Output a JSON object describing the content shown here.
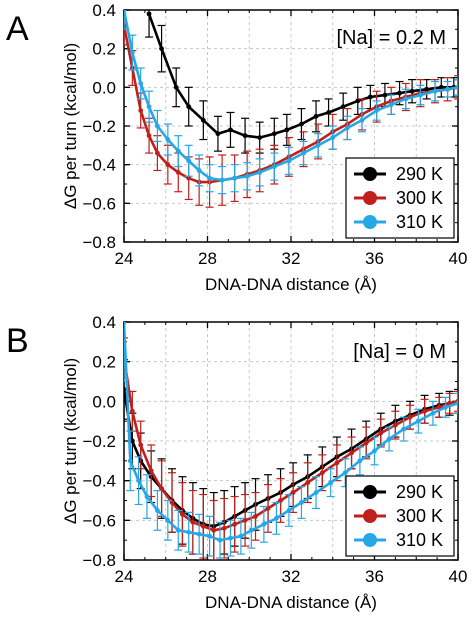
{
  "chart_data": [
    {
      "type": "line",
      "panel_label": "A",
      "annotation": "[Na] = 0.2 M",
      "xlabel": "DNA-DNA distance (Å)",
      "ylabel": "ΔG per turn (kcal/mol)",
      "xlim": [
        24,
        40
      ],
      "ylim": [
        -0.8,
        0.4
      ],
      "xticks": [
        "24",
        "28",
        "32",
        "36",
        "40"
      ],
      "yticks": [
        "0.4",
        "0.2",
        "0.0",
        "−0.2",
        "−0.4",
        "−0.6",
        "−0.8"
      ],
      "grid": true,
      "legend_position": "right",
      "series": [
        {
          "name": "290 K",
          "color": "#000000",
          "x": [
            25.2,
            25.8,
            26.5,
            27.1,
            27.8,
            28.5,
            29.1,
            29.8,
            30.5,
            31.2,
            31.8,
            32.5,
            33.2,
            33.8,
            34.5,
            35.2,
            35.8,
            36.5,
            37.2,
            37.8,
            38.5,
            39.2,
            39.8,
            40.0
          ],
          "y": [
            0.38,
            0.2,
            0.0,
            -0.1,
            -0.17,
            -0.24,
            -0.22,
            -0.25,
            -0.26,
            -0.24,
            -0.22,
            -0.19,
            -0.15,
            -0.13,
            -0.1,
            -0.07,
            -0.05,
            -0.04,
            -0.03,
            -0.02,
            -0.01,
            0.0,
            0.0,
            0.0
          ],
          "err": [
            0.12,
            0.12,
            0.1,
            0.1,
            0.1,
            0.09,
            0.09,
            0.09,
            0.08,
            0.08,
            0.08,
            0.08,
            0.08,
            0.07,
            0.07,
            0.07,
            0.06,
            0.06,
            0.06,
            0.06,
            0.05,
            0.05,
            0.05,
            0.04
          ]
        },
        {
          "name": "300 K",
          "color": "#c0201c",
          "x": [
            24.0,
            24.4,
            24.8,
            25.2,
            25.6,
            26.1,
            26.6,
            27.1,
            27.6,
            28.1,
            28.7,
            29.3,
            29.9,
            30.5,
            31.2,
            31.9,
            32.6,
            33.3,
            34.0,
            34.7,
            35.4,
            36.1,
            36.8,
            37.5,
            38.2,
            38.9,
            39.5,
            40.0
          ],
          "y": [
            0.32,
            0.1,
            -0.12,
            -0.25,
            -0.34,
            -0.4,
            -0.44,
            -0.47,
            -0.49,
            -0.49,
            -0.48,
            -0.47,
            -0.45,
            -0.43,
            -0.4,
            -0.36,
            -0.32,
            -0.28,
            -0.23,
            -0.19,
            -0.14,
            -0.1,
            -0.07,
            -0.05,
            -0.03,
            -0.02,
            -0.01,
            0.0
          ],
          "err": [
            0.1,
            0.09,
            0.09,
            0.09,
            0.09,
            0.1,
            0.1,
            0.11,
            0.12,
            0.13,
            0.13,
            0.12,
            0.12,
            0.11,
            0.1,
            0.1,
            0.09,
            0.09,
            0.09,
            0.08,
            0.08,
            0.08,
            0.07,
            0.07,
            0.07,
            0.06,
            0.06,
            0.06
          ]
        },
        {
          "name": "310 K",
          "color": "#26a8e6",
          "x": [
            24.0,
            24.4,
            24.8,
            25.2,
            25.6,
            26.1,
            26.6,
            27.1,
            27.6,
            28.1,
            28.7,
            29.3,
            29.9,
            30.5,
            31.2,
            31.9,
            32.6,
            33.3,
            34.0,
            34.7,
            35.4,
            36.1,
            36.8,
            37.5,
            38.2,
            38.9,
            39.5,
            40.0
          ],
          "y": [
            0.4,
            0.18,
            0.02,
            -0.1,
            -0.2,
            -0.27,
            -0.33,
            -0.38,
            -0.43,
            -0.47,
            -0.48,
            -0.47,
            -0.46,
            -0.44,
            -0.41,
            -0.38,
            -0.34,
            -0.3,
            -0.26,
            -0.21,
            -0.17,
            -0.12,
            -0.09,
            -0.06,
            -0.04,
            -0.02,
            -0.01,
            0.0
          ],
          "err": [
            0.1,
            0.09,
            0.08,
            0.08,
            0.08,
            0.08,
            0.08,
            0.08,
            0.08,
            0.07,
            0.07,
            0.07,
            0.07,
            0.07,
            0.07,
            0.07,
            0.06,
            0.06,
            0.06,
            0.06,
            0.06,
            0.05,
            0.05,
            0.05,
            0.05,
            0.05,
            0.04,
            0.04
          ]
        }
      ]
    },
    {
      "type": "line",
      "panel_label": "B",
      "annotation": "[Na] = 0 M",
      "xlabel": "DNA-DNA distance (Å)",
      "ylabel": "ΔG per turn (kcal/mol)",
      "xlim": [
        24,
        40
      ],
      "ylim": [
        -0.8,
        0.4
      ],
      "xticks": [
        "24",
        "28",
        "32",
        "36",
        "40"
      ],
      "yticks": [
        "0.4",
        "0.2",
        "0.0",
        "−0.2",
        "−0.4",
        "−0.6",
        "−0.8"
      ],
      "grid": true,
      "legend_position": "bottom-right",
      "series": [
        {
          "name": "290 K",
          "color": "#000000",
          "x": [
            24.0,
            24.4,
            24.8,
            25.3,
            25.8,
            26.3,
            26.8,
            27.3,
            27.8,
            28.3,
            28.8,
            29.3,
            29.8,
            30.3,
            30.9,
            31.5,
            32.1,
            32.8,
            33.5,
            34.2,
            34.9,
            35.6,
            36.3,
            37.0,
            37.7,
            38.4,
            39.1,
            39.6,
            40.0
          ],
          "y": [
            0.06,
            -0.2,
            -0.3,
            -0.38,
            -0.44,
            -0.5,
            -0.55,
            -0.59,
            -0.62,
            -0.63,
            -0.61,
            -0.58,
            -0.55,
            -0.52,
            -0.49,
            -0.46,
            -0.42,
            -0.38,
            -0.33,
            -0.28,
            -0.24,
            -0.19,
            -0.14,
            -0.1,
            -0.07,
            -0.04,
            -0.02,
            -0.01,
            0.0
          ],
          "err": [
            0.15,
            0.14,
            0.14,
            0.13,
            0.15,
            0.16,
            0.17,
            0.18,
            0.18,
            0.17,
            0.16,
            0.15,
            0.14,
            0.13,
            0.12,
            0.12,
            0.11,
            0.11,
            0.1,
            0.1,
            0.1,
            0.09,
            0.08,
            0.08,
            0.07,
            0.07,
            0.06,
            0.06,
            0.06
          ]
        },
        {
          "name": "300 K",
          "color": "#c0201c",
          "x": [
            24.0,
            24.4,
            24.8,
            25.3,
            25.8,
            26.3,
            26.8,
            27.3,
            27.8,
            28.3,
            28.8,
            29.3,
            29.8,
            30.3,
            30.9,
            31.5,
            32.1,
            32.8,
            33.5,
            34.2,
            34.9,
            35.6,
            36.3,
            37.0,
            37.7,
            38.4,
            39.1,
            39.6,
            40.0
          ],
          "y": [
            0.22,
            -0.05,
            -0.22,
            -0.35,
            -0.44,
            -0.51,
            -0.57,
            -0.61,
            -0.63,
            -0.65,
            -0.64,
            -0.62,
            -0.6,
            -0.58,
            -0.54,
            -0.5,
            -0.46,
            -0.41,
            -0.36,
            -0.31,
            -0.26,
            -0.21,
            -0.16,
            -0.12,
            -0.08,
            -0.05,
            -0.03,
            -0.01,
            0.0
          ],
          "err": [
            0.1,
            0.1,
            0.12,
            0.13,
            0.14,
            0.15,
            0.16,
            0.16,
            0.16,
            0.15,
            0.15,
            0.14,
            0.13,
            0.12,
            0.12,
            0.11,
            0.1,
            0.1,
            0.09,
            0.09,
            0.08,
            0.08,
            0.07,
            0.07,
            0.06,
            0.06,
            0.05,
            0.05,
            0.05
          ]
        },
        {
          "name": "310 K",
          "color": "#26a8e6",
          "x": [
            24.0,
            24.3,
            24.7,
            25.1,
            25.6,
            26.1,
            26.6,
            27.1,
            27.6,
            28.1,
            28.6,
            29.1,
            29.6,
            30.1,
            30.7,
            31.3,
            31.9,
            32.5,
            33.2,
            33.9,
            34.6,
            35.3,
            36.0,
            36.7,
            37.4,
            38.1,
            38.8,
            39.4,
            40.0
          ],
          "y": [
            0.4,
            -0.3,
            -0.4,
            -0.48,
            -0.55,
            -0.6,
            -0.65,
            -0.66,
            -0.67,
            -0.68,
            -0.7,
            -0.69,
            -0.68,
            -0.65,
            -0.62,
            -0.59,
            -0.55,
            -0.51,
            -0.46,
            -0.41,
            -0.36,
            -0.3,
            -0.25,
            -0.19,
            -0.14,
            -0.1,
            -0.06,
            -0.03,
            -0.01
          ],
          "err": [
            0.3,
            0.15,
            0.12,
            0.11,
            0.1,
            0.1,
            0.1,
            0.1,
            0.1,
            0.1,
            0.09,
            0.09,
            0.09,
            0.09,
            0.09,
            0.08,
            0.08,
            0.08,
            0.08,
            0.07,
            0.07,
            0.07,
            0.07,
            0.06,
            0.06,
            0.06,
            0.06,
            0.05,
            0.05
          ]
        }
      ]
    }
  ]
}
